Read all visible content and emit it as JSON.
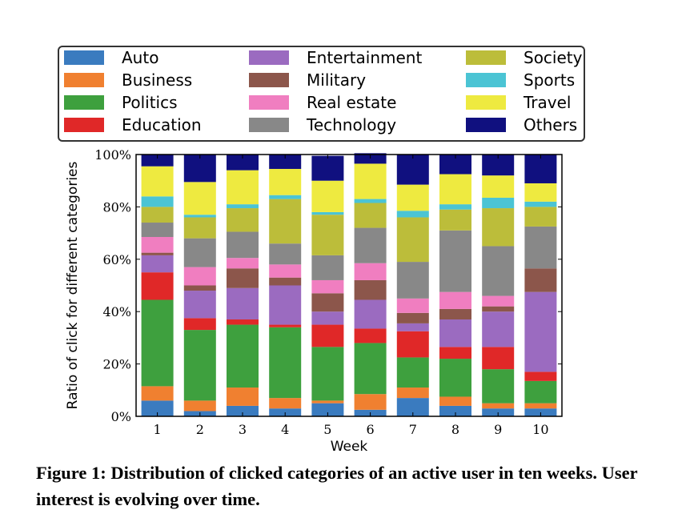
{
  "chart_data": {
    "type": "bar",
    "stacked": true,
    "xlabel": "Week",
    "ylabel": "Ratio of click for different categories",
    "ylim": [
      0,
      100
    ],
    "yticks": [
      "0%",
      "20%",
      "40%",
      "60%",
      "80%",
      "100%"
    ],
    "categories": [
      "1",
      "2",
      "3",
      "4",
      "5",
      "6",
      "7",
      "8",
      "9",
      "10"
    ],
    "legend_position": "top",
    "series": [
      {
        "name": "Auto",
        "color": "#3a7bbf",
        "values": [
          6,
          2,
          4,
          3,
          5,
          2.5,
          7,
          4,
          3,
          3
        ]
      },
      {
        "name": "Business",
        "color": "#f08030",
        "values": [
          5.5,
          4,
          7,
          4,
          1,
          6,
          4,
          3.5,
          2,
          2
        ]
      },
      {
        "name": "Politics",
        "color": "#3ea03e",
        "values": [
          33,
          27,
          24,
          27,
          20.5,
          19.5,
          11.5,
          14.5,
          13,
          8.5
        ]
      },
      {
        "name": "Education",
        "color": "#e02828",
        "values": [
          10.5,
          4.5,
          2,
          1,
          8.5,
          5.5,
          10,
          4.5,
          8.5,
          3.5
        ]
      },
      {
        "name": "Entertainment",
        "color": "#9b6bc0",
        "values": [
          6.5,
          10.5,
          12,
          15,
          5,
          11,
          3,
          10.5,
          13.5,
          30.5
        ]
      },
      {
        "name": "Military",
        "color": "#8c564b",
        "values": [
          1,
          2,
          7.5,
          3,
          7,
          7.5,
          4,
          4,
          2,
          9
        ]
      },
      {
        "name": "Real estate",
        "color": "#f07ec0",
        "values": [
          6,
          7,
          4,
          5,
          5,
          6.5,
          5.5,
          6.5,
          4,
          0
        ]
      },
      {
        "name": "Technology",
        "color": "#888888",
        "values": [
          5.5,
          11,
          10,
          8,
          9.5,
          13.5,
          14,
          23.5,
          19,
          16
        ]
      },
      {
        "name": "Society",
        "color": "#bcbd3a",
        "values": [
          6,
          8,
          9,
          17,
          15.5,
          9.5,
          17,
          8,
          14.5,
          7.5
        ]
      },
      {
        "name": "Sports",
        "color": "#4bc4d4",
        "values": [
          4,
          1,
          1.5,
          1.5,
          1,
          1.5,
          2.5,
          2,
          4,
          2
        ]
      },
      {
        "name": "Travel",
        "color": "#eeea40",
        "values": [
          11.5,
          12.5,
          13,
          10,
          12,
          13.5,
          10,
          11.5,
          8.5,
          7
        ]
      },
      {
        "name": "Others",
        "color": "#10107f",
        "values": [
          4.5,
          10.5,
          6,
          5.5,
          9.5,
          4,
          11.5,
          7.5,
          8,
          11
        ]
      }
    ]
  },
  "caption": "Figure 1: Distribution of clicked categories of an active user in ten weeks. User interest is evolving over time."
}
